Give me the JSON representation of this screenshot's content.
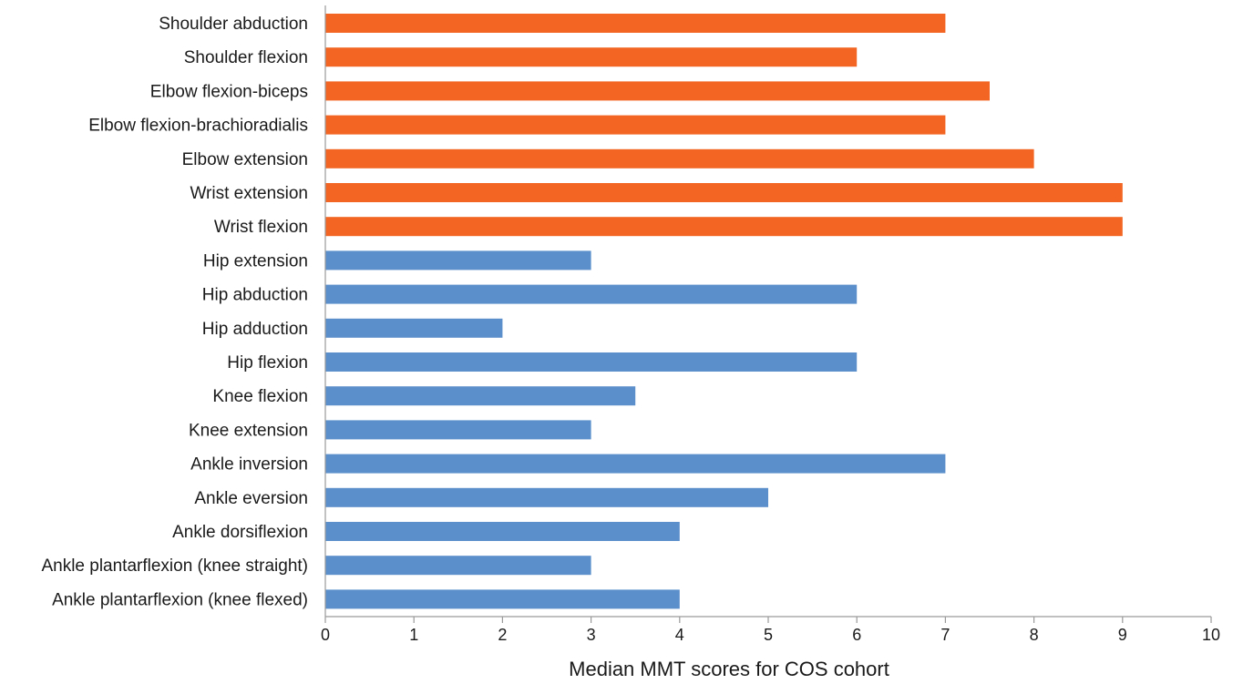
{
  "chart_data": {
    "type": "bar",
    "orientation": "horizontal",
    "title": "",
    "xlabel": "Median MMT scores for COS cohort",
    "ylabel": "",
    "xlim": [
      0,
      10
    ],
    "x_ticks": [
      0,
      1,
      2,
      3,
      4,
      5,
      6,
      7,
      8,
      9,
      10
    ],
    "grid": false,
    "categories": [
      "Shoulder abduction",
      "Shoulder flexion",
      "Elbow flexion-biceps",
      "Elbow flexion-brachioradialis",
      "Elbow extension",
      "Wrist extension",
      "Wrist flexion",
      "Hip extension",
      "Hip abduction",
      "Hip adduction",
      "Hip flexion",
      "Knee flexion",
      "Knee extension",
      "Ankle inversion",
      "Ankle eversion",
      "Ankle dorsiflexion",
      "Ankle plantarflexion (knee straight)",
      "Ankle plantarflexion (knee flexed)"
    ],
    "values": [
      7,
      6,
      7.5,
      7,
      8,
      9,
      9,
      3,
      6,
      2,
      6,
      3.5,
      3,
      7,
      5,
      4,
      3,
      4
    ],
    "bar_colors": [
      "#f26522",
      "#f26522",
      "#f26522",
      "#f26522",
      "#f26522",
      "#f26522",
      "#f26522",
      "#5b8fcc",
      "#5b8fcc",
      "#5b8fcc",
      "#5b8fcc",
      "#5b8fcc",
      "#5b8fcc",
      "#5b8fcc",
      "#5b8fcc",
      "#5b8fcc",
      "#5b8fcc",
      "#5b8fcc"
    ],
    "colors": {
      "upper_limb": "#f26522",
      "lower_limb": "#5b8fcc",
      "axis": "#9a9a9a"
    }
  }
}
